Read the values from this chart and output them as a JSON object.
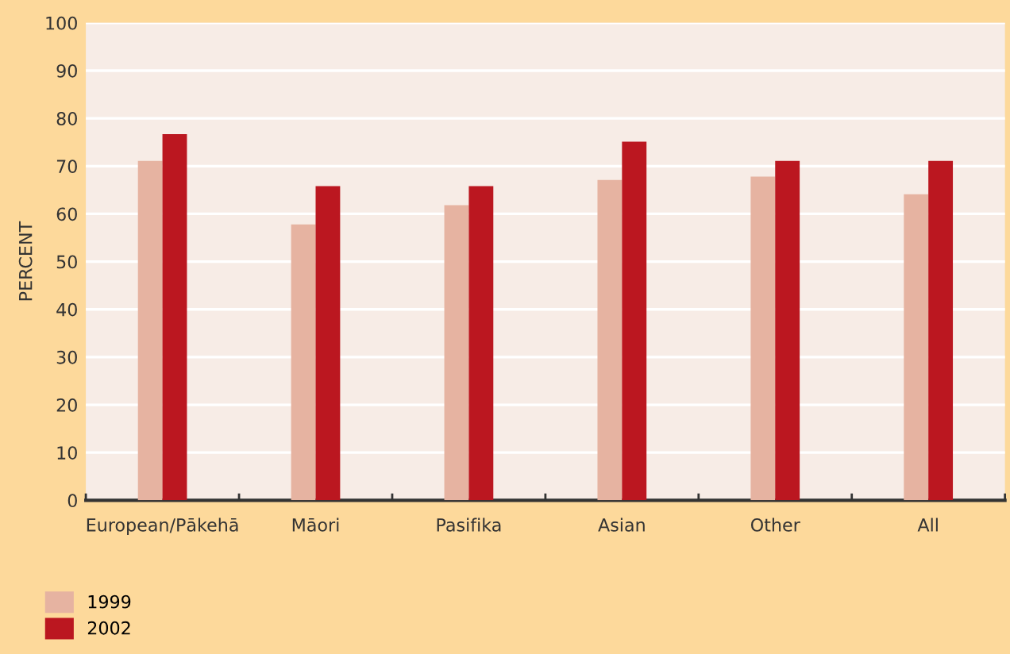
{
  "chart_data": {
    "type": "bar",
    "ylabel": "PERCENT",
    "categories": [
      "European/Pākehā",
      "Māori",
      "Pasifika",
      "Asian",
      "Other",
      "All"
    ],
    "series": [
      {
        "name": "1999",
        "color": "#e6b3a1",
        "values": [
          71.1,
          57.8,
          61.8,
          67.1,
          67.8,
          64.1
        ]
      },
      {
        "name": "2002",
        "color": "#bb1720",
        "values": [
          76.7,
          65.8,
          65.8,
          75.1,
          71.1,
          71.1
        ]
      }
    ],
    "ylim": [
      0,
      100
    ],
    "yticks": [
      0,
      10,
      20,
      30,
      40,
      50,
      60,
      70,
      80,
      90,
      100
    ],
    "grid": "y",
    "legend": "bottom left"
  }
}
